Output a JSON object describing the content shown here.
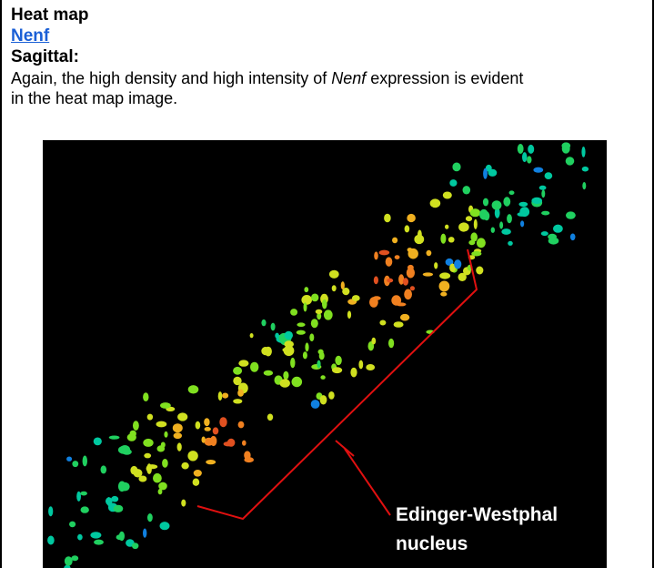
{
  "header": {
    "title": "Heat map",
    "link": "Nenf",
    "section": "Sagittal:"
  },
  "paragraph": {
    "parts": [
      "Again, the high density and high intensity of ",
      "Nenf",
      " expression is evident in the heat map image."
    ]
  },
  "figure": {
    "label_lines": [
      "Edinger-Westphal",
      "nucleus"
    ]
  }
}
